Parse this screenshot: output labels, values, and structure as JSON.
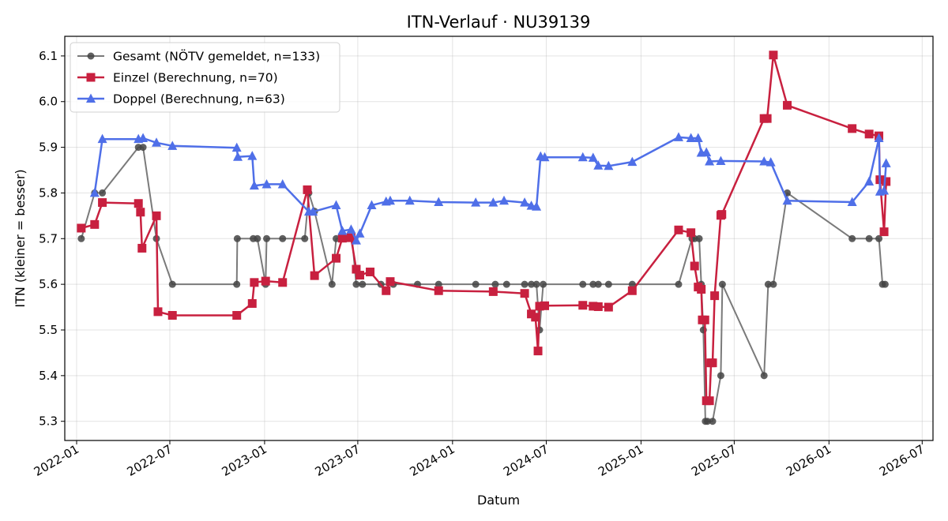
{
  "chart_data": {
    "type": "line",
    "title": "ITN-Verlauf · NU39139",
    "xlabel": "Datum",
    "ylabel": "ITN  (kleiner = besser)",
    "x_axis": "date",
    "xlim": [
      "2021-12-09",
      "2026-07-22"
    ],
    "ylim": [
      5.258,
      6.143
    ],
    "x_ticks": [
      "2022-01",
      "2022-07",
      "2023-01",
      "2023-07",
      "2024-01",
      "2024-07",
      "2025-01",
      "2025-07",
      "2026-01",
      "2026-07"
    ],
    "y_ticks": [
      5.3,
      5.4,
      5.5,
      5.6,
      5.7,
      5.8,
      5.9,
      6.0,
      6.1
    ],
    "grid": true,
    "legend_position": "top-left",
    "series": [
      {
        "name": "Gesamt (NÖTV gemeldet, n=133)",
        "color": "#7a7a7a",
        "marker": "circle",
        "points": [
          [
            "2022-01-10",
            5.7
          ],
          [
            "2022-02-05",
            5.8
          ],
          [
            "2022-02-20",
            5.8
          ],
          [
            "2022-05-01",
            5.9
          ],
          [
            "2022-05-10",
            5.9
          ],
          [
            "2022-06-05",
            5.7
          ],
          [
            "2022-07-06",
            5.6
          ],
          [
            "2022-11-08",
            5.6
          ],
          [
            "2022-11-09",
            5.7
          ],
          [
            "2022-12-10",
            5.7
          ],
          [
            "2022-12-18",
            5.7
          ],
          [
            "2023-01-03",
            5.6
          ],
          [
            "2023-01-05",
            5.7
          ],
          [
            "2023-02-05",
            5.7
          ],
          [
            "2023-03-20",
            5.7
          ],
          [
            "2023-03-28",
            5.8
          ],
          [
            "2023-04-08",
            5.76
          ],
          [
            "2023-05-12",
            5.6
          ],
          [
            "2023-05-20",
            5.7
          ],
          [
            "2023-06-08",
            5.7
          ],
          [
            "2023-06-20",
            5.7
          ],
          [
            "2023-06-28",
            5.6
          ],
          [
            "2023-07-10",
            5.6
          ],
          [
            "2023-08-15",
            5.6
          ],
          [
            "2023-09-08",
            5.6
          ],
          [
            "2023-10-25",
            5.6
          ],
          [
            "2023-12-05",
            5.6
          ],
          [
            "2024-02-15",
            5.6
          ],
          [
            "2024-03-24",
            5.6
          ],
          [
            "2024-04-15",
            5.6
          ],
          [
            "2024-05-20",
            5.6
          ],
          [
            "2024-06-02",
            5.6
          ],
          [
            "2024-06-12",
            5.6
          ],
          [
            "2024-06-18",
            5.5
          ],
          [
            "2024-06-25",
            5.6
          ],
          [
            "2024-09-10",
            5.6
          ],
          [
            "2024-09-30",
            5.6
          ],
          [
            "2024-10-10",
            5.6
          ],
          [
            "2024-10-30",
            5.6
          ],
          [
            "2024-12-15",
            5.6
          ],
          [
            "2025-03-15",
            5.6
          ],
          [
            "2025-04-10",
            5.7
          ],
          [
            "2025-04-15",
            5.7
          ],
          [
            "2025-04-24",
            5.7
          ],
          [
            "2025-04-28",
            5.6
          ],
          [
            "2025-05-02",
            5.5
          ],
          [
            "2025-05-06",
            5.3
          ],
          [
            "2025-05-10",
            5.3
          ],
          [
            "2025-05-20",
            5.3
          ],
          [
            "2025-06-05",
            5.4
          ],
          [
            "2025-06-08",
            5.6
          ],
          [
            "2025-08-28",
            5.4
          ],
          [
            "2025-09-05",
            5.6
          ],
          [
            "2025-09-15",
            5.6
          ],
          [
            "2025-10-12",
            5.8
          ],
          [
            "2026-02-15",
            5.7
          ],
          [
            "2026-03-20",
            5.7
          ],
          [
            "2026-04-08",
            5.7
          ],
          [
            "2026-04-15",
            5.6
          ],
          [
            "2026-04-20",
            5.6
          ]
        ]
      },
      {
        "name": "Einzel (Berechnung, n=70)",
        "color": "#c8203f",
        "marker": "square",
        "points": [
          [
            "2022-01-10",
            5.723
          ],
          [
            "2022-02-05",
            5.731
          ],
          [
            "2022-02-20",
            5.779
          ],
          [
            "2022-05-01",
            5.777
          ],
          [
            "2022-05-05",
            5.758
          ],
          [
            "2022-05-08",
            5.679
          ],
          [
            "2022-06-05",
            5.75
          ],
          [
            "2022-06-08",
            5.54
          ],
          [
            "2022-07-06",
            5.532
          ],
          [
            "2022-11-08",
            5.532
          ],
          [
            "2022-12-08",
            5.558
          ],
          [
            "2022-12-12",
            5.604
          ],
          [
            "2023-01-03",
            5.607
          ],
          [
            "2023-02-05",
            5.604
          ],
          [
            "2023-03-25",
            5.807
          ],
          [
            "2023-04-08",
            5.619
          ],
          [
            "2023-05-20",
            5.657
          ],
          [
            "2023-06-01",
            5.701
          ],
          [
            "2023-06-18",
            5.702
          ],
          [
            "2023-06-28",
            5.633
          ],
          [
            "2023-07-05",
            5.62
          ],
          [
            "2023-07-25",
            5.627
          ],
          [
            "2023-08-25",
            5.586
          ],
          [
            "2023-09-02",
            5.606
          ],
          [
            "2023-12-05",
            5.586
          ],
          [
            "2024-03-20",
            5.584
          ],
          [
            "2024-05-20",
            5.58
          ],
          [
            "2024-06-02",
            5.535
          ],
          [
            "2024-06-10",
            5.528
          ],
          [
            "2024-06-15",
            5.454
          ],
          [
            "2024-06-18",
            5.552
          ],
          [
            "2024-06-28",
            5.553
          ],
          [
            "2024-09-10",
            5.554
          ],
          [
            "2024-09-30",
            5.552
          ],
          [
            "2024-10-10",
            5.551
          ],
          [
            "2024-10-30",
            5.55
          ],
          [
            "2024-12-15",
            5.586
          ],
          [
            "2025-03-15",
            5.719
          ],
          [
            "2025-04-08",
            5.713
          ],
          [
            "2025-04-15",
            5.64
          ],
          [
            "2025-04-22",
            5.594
          ],
          [
            "2025-04-28",
            5.589
          ],
          [
            "2025-04-30",
            5.522
          ],
          [
            "2025-05-05",
            5.522
          ],
          [
            "2025-05-08",
            5.345
          ],
          [
            "2025-05-14",
            5.345
          ],
          [
            "2025-05-17",
            5.428
          ],
          [
            "2025-05-20",
            5.428
          ],
          [
            "2025-05-24",
            5.575
          ],
          [
            "2025-06-05",
            5.751
          ],
          [
            "2025-06-07",
            5.753
          ],
          [
            "2025-08-28",
            5.963
          ],
          [
            "2025-09-03",
            5.963
          ],
          [
            "2025-09-15",
            6.102
          ],
          [
            "2025-10-12",
            5.992
          ],
          [
            "2026-02-15",
            5.941
          ],
          [
            "2026-03-20",
            5.929
          ],
          [
            "2026-04-08",
            5.925
          ],
          [
            "2026-04-10",
            5.829
          ],
          [
            "2026-04-18",
            5.715
          ],
          [
            "2026-04-22",
            5.825
          ]
        ]
      },
      {
        "name": "Doppel (Berechnung, n=63)",
        "color": "#4f6fe8",
        "marker": "triangle",
        "points": [
          [
            "2022-02-05",
            5.8
          ],
          [
            "2022-02-20",
            5.918
          ],
          [
            "2022-05-01",
            5.918
          ],
          [
            "2022-05-10",
            5.92
          ],
          [
            "2022-06-05",
            5.91
          ],
          [
            "2022-07-06",
            5.903
          ],
          [
            "2022-11-08",
            5.899
          ],
          [
            "2022-11-10",
            5.879
          ],
          [
            "2022-12-08",
            5.881
          ],
          [
            "2022-12-12",
            5.816
          ],
          [
            "2023-01-05",
            5.819
          ],
          [
            "2023-02-05",
            5.819
          ],
          [
            "2023-03-28",
            5.759
          ],
          [
            "2023-04-05",
            5.759
          ],
          [
            "2023-05-20",
            5.773
          ],
          [
            "2023-06-01",
            5.717
          ],
          [
            "2023-06-18",
            5.72
          ],
          [
            "2023-06-28",
            5.696
          ],
          [
            "2023-07-05",
            5.711
          ],
          [
            "2023-07-28",
            5.773
          ],
          [
            "2023-08-25",
            5.781
          ],
          [
            "2023-09-02",
            5.783
          ],
          [
            "2023-10-10",
            5.783
          ],
          [
            "2023-12-05",
            5.78
          ],
          [
            "2024-02-15",
            5.779
          ],
          [
            "2024-03-20",
            5.779
          ],
          [
            "2024-04-10",
            5.783
          ],
          [
            "2024-05-20",
            5.779
          ],
          [
            "2024-06-02",
            5.772
          ],
          [
            "2024-06-12",
            5.77
          ],
          [
            "2024-06-20",
            5.88
          ],
          [
            "2024-06-28",
            5.878
          ],
          [
            "2024-09-10",
            5.878
          ],
          [
            "2024-09-30",
            5.877
          ],
          [
            "2024-10-10",
            5.86
          ],
          [
            "2024-10-30",
            5.859
          ],
          [
            "2024-12-15",
            5.868
          ],
          [
            "2025-03-15",
            5.922
          ],
          [
            "2025-04-08",
            5.92
          ],
          [
            "2025-04-22",
            5.92
          ],
          [
            "2025-04-28",
            5.888
          ],
          [
            "2025-05-08",
            5.889
          ],
          [
            "2025-05-14",
            5.869
          ],
          [
            "2025-06-05",
            5.87
          ],
          [
            "2025-08-28",
            5.869
          ],
          [
            "2025-09-10",
            5.867
          ],
          [
            "2025-10-12",
            5.783
          ],
          [
            "2026-02-15",
            5.78
          ],
          [
            "2026-03-20",
            5.825
          ],
          [
            "2026-04-08",
            5.92
          ],
          [
            "2026-04-10",
            5.803
          ],
          [
            "2026-04-18",
            5.805
          ],
          [
            "2026-04-22",
            5.865
          ]
        ]
      }
    ]
  }
}
